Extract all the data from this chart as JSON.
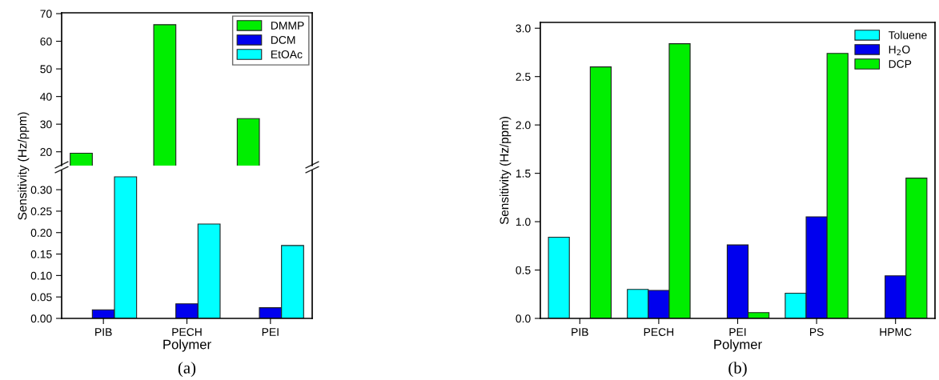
{
  "chart_data": [
    {
      "type": "bar",
      "categories": [
        null,
        null,
        null
      ],
      "ylim": [
        15,
        70.3
      ],
      "yticks": [
        20,
        30,
        40,
        50,
        60,
        70
      ],
      "tick_labels": "y",
      "legend": "top right",
      "series": [
        {
          "name": "DMMP",
          "color": "#00ee00",
          "values": [
            19.5,
            66,
            32
          ]
        },
        {
          "name": "DCM",
          "color": "#0000ee",
          "values": [
            null,
            null,
            null
          ]
        },
        {
          "name": "EtOAc",
          "color": "#00ffff",
          "values": [
            null,
            null,
            null
          ]
        }
      ]
    },
    {
      "type": "bar",
      "categories": [
        "PIB",
        "PECH",
        "PEI"
      ],
      "ylim": [
        0,
        0.345
      ],
      "yticks": [
        {
          "value": 0,
          "label": "0.00"
        },
        0.05,
        {
          "value": 0.1,
          "label": "0.10"
        },
        0.15,
        {
          "value": 0.2,
          "label": "0.20"
        },
        0.25,
        {
          "value": 0.3,
          "label": "0.30"
        }
      ],
      "title": "(a)",
      "xlabel": "Polymer",
      "ylabel": "Sensitivity (Hz/ppm)",
      "series": [
        {
          "color": "#0000ee",
          "values": [
            0.02,
            0.034,
            0.025
          ]
        },
        {
          "color": "#00ffff",
          "values": [
            0.33,
            0.22,
            0.17
          ]
        }
      ]
    },
    {
      "type": "bar",
      "categories": [
        "PIB",
        "PECH",
        "PEI",
        "PS",
        "HPMC"
      ],
      "ylim": [
        0,
        3.06
      ],
      "yticks": [
        {
          "value": 0,
          "label": "0.0"
        },
        0.5,
        {
          "value": 1,
          "label": "1.0"
        },
        1.5,
        {
          "value": 2,
          "label": "2.0"
        },
        2.5,
        {
          "value": 3,
          "label": "3.0"
        }
      ],
      "title": "(b)",
      "xlabel": "Polymer",
      "ylabel": "Sensitivity (Hz/ppm)",
      "legend": "top right",
      "series": [
        {
          "name": "Toluene",
          "color": "#00ffff",
          "values": [
            0.84,
            0.3,
            null,
            0.26,
            null
          ]
        },
        {
          "name": "H$_{2}$O",
          "color": "#0000ee",
          "values": [
            null,
            0.29,
            0.76,
            1.05,
            0.44
          ]
        },
        {
          "name": "DCP",
          "color": "#00ee00",
          "values": [
            2.6,
            2.84,
            0.06,
            2.74,
            1.45
          ]
        }
      ]
    }
  ]
}
